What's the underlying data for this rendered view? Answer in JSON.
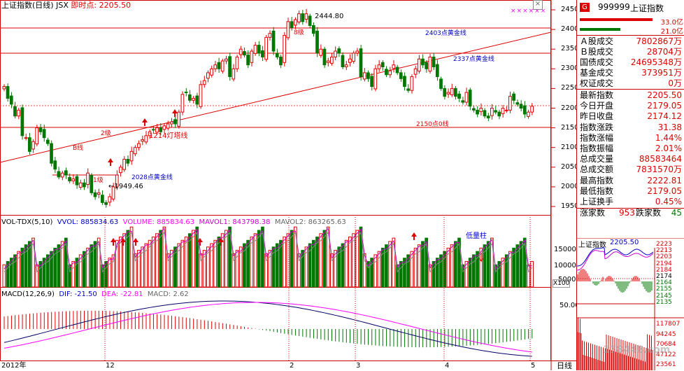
{
  "header": {
    "title": "上证指数(日线)",
    "code": "JSX",
    "realtime_label": "即时点:",
    "realtime_value": "2205.50",
    "markers": "××××××"
  },
  "main_chart": {
    "price_axis": [
      "2450",
      "2400",
      "2350",
      "2300",
      "2250",
      "2200",
      "2150",
      "2100",
      "2050",
      "2000",
      "1950"
    ],
    "annotations": {
      "high": "2444.80",
      "low": "1949.46",
      "level_8": "8级",
      "level_2": "2级",
      "level_1": "1级",
      "line_b": "B线",
      "fib_2403": "2403点黄金线",
      "fib_2337": "2337点黄金线",
      "fib_2028": "2028点黄金线",
      "line_1214": "1214灯塔线",
      "line_2150": "2150点0线"
    }
  },
  "volume_panel": {
    "title": "VOL-TDX(5,10)",
    "vvol_label": "VVOL: 885834.63",
    "volume_label": "VOLUME: 885834.63",
    "mavol1_label": "MAVOL1: 843798.38",
    "mavol2_label": "MAVOL2: 863265.63",
    "axis": [
      "15000",
      "10000",
      "5000"
    ],
    "unit": "X100",
    "note": "低量柱"
  },
  "macd_panel": {
    "title": "MACD(12,26,9)",
    "dif": "DIF: -21.50",
    "dea": "DEA: -22.81",
    "macd": "MACD: 2.62",
    "axis": "50.00"
  },
  "x_axis": {
    "labels": [
      "2012年",
      "12",
      "2",
      "3",
      "4",
      "5"
    ],
    "tab": "日线"
  },
  "quote": {
    "g_badge": "G",
    "code": "999999",
    "name": "上证指数",
    "bar1": "33.0亿",
    "bar2": "21.0亿",
    "rows": [
      {
        "k": "Ａ股成交",
        "v": "7802867万"
      },
      {
        "k": "Ｂ股成交",
        "v": "28704万"
      },
      {
        "k": "国债成交",
        "v": "24695348万"
      },
      {
        "k": "基金成交",
        "v": "373951万"
      },
      {
        "k": "权证成交",
        "v": "0万"
      }
    ],
    "rows2": [
      {
        "k": "最新指数",
        "v": "2205.50"
      },
      {
        "k": "今日开盘",
        "v": "2179.05"
      },
      {
        "k": "昨日收盘",
        "v": "2174.12"
      },
      {
        "k": "指数涨跌",
        "v": "31.38"
      },
      {
        "k": "指数涨幅",
        "v": "1.44%"
      },
      {
        "k": "指数振幅",
        "v": "2.01%"
      },
      {
        "k": "总成交量",
        "v": "88583464"
      },
      {
        "k": "总成交额",
        "v": "7831570万"
      },
      {
        "k": "最高指数",
        "v": "2222.81"
      },
      {
        "k": "最低指数",
        "v": "2179.05"
      },
      {
        "k": "上证换手",
        "v": "0.45%"
      }
    ],
    "rise_label": "涨家数",
    "rise_value": "953",
    "fall_label": "跌家数",
    "fall_value": "45"
  },
  "mini_chart": {
    "title": "上证指数",
    "value": "2205.50",
    "price_axis": [
      "2223",
      "2213",
      "2203",
      "2194",
      "2184",
      "2174",
      "2164",
      "2155",
      "2145",
      "2135"
    ],
    "vol_axis": [
      "117807",
      "94245",
      "70684",
      "47122",
      "23561"
    ],
    "watermark": "178448.com"
  }
}
